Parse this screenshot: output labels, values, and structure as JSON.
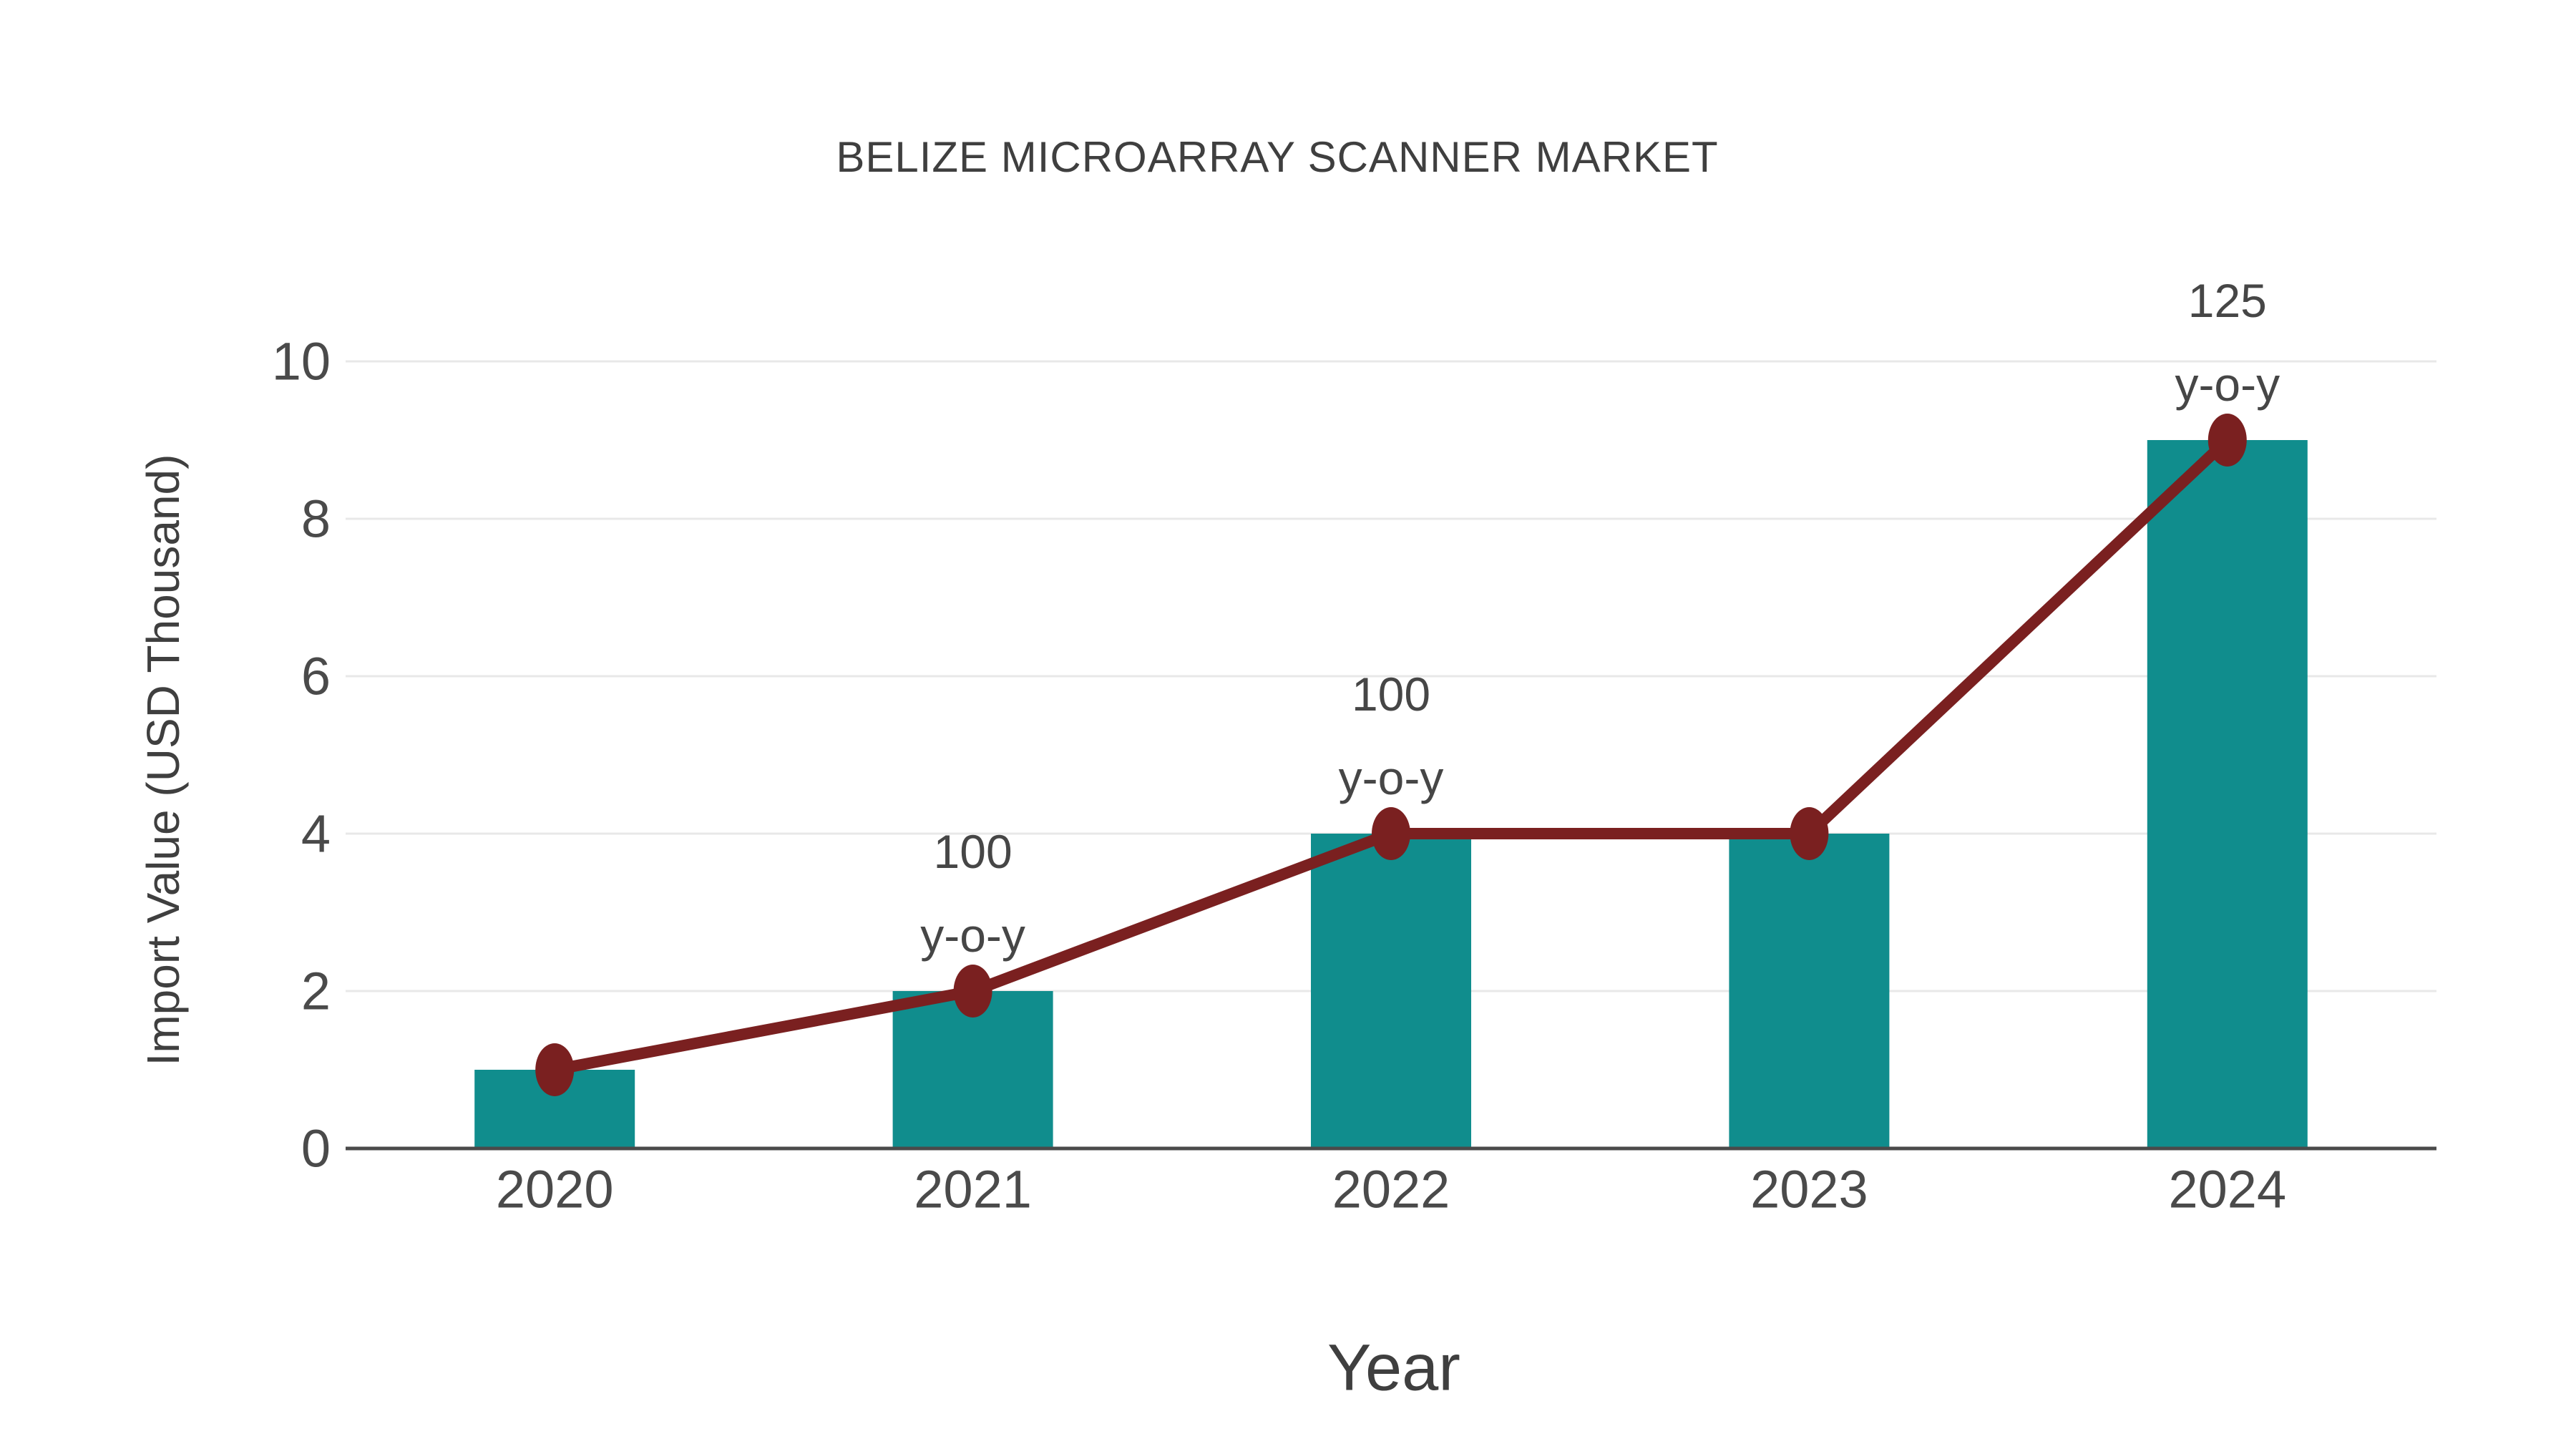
{
  "chart_data": {
    "type": "bar",
    "title": "BELIZE MICROARRAY SCANNER MARKET",
    "xlabel": "Year",
    "ylabel": "Import Value (USD Thousand)",
    "categories": [
      "2020",
      "2021",
      "2022",
      "2023",
      "2024"
    ],
    "series": [
      {
        "name": "import-value-bars",
        "type": "bar",
        "values": [
          1,
          2,
          4,
          4,
          9
        ]
      },
      {
        "name": "import-value-trend-line",
        "type": "line",
        "values": [
          1,
          2,
          4,
          4,
          9
        ]
      }
    ],
    "annotations": [
      {
        "category": "2021",
        "lines": [
          "100",
          "y-o-y"
        ]
      },
      {
        "category": "2022",
        "lines": [
          "100",
          "y-o-y"
        ]
      },
      {
        "category": "2024",
        "lines": [
          "125",
          "y-o-y"
        ]
      }
    ],
    "ylim": [
      0,
      10
    ],
    "yticks": [
      0,
      2,
      4,
      6,
      8,
      10
    ],
    "grid": true,
    "legend_position": "none",
    "colors": {
      "bar": "#108d8d",
      "line": "#7a2020",
      "marker": "#7a2020",
      "title_text": "#3f3f3f",
      "tick_text": "#4a4a4a",
      "annotation_text": "#464646",
      "gridline": "#e8e8e8",
      "axis_line": "#4a4a4a",
      "background": "#ffffff"
    }
  }
}
